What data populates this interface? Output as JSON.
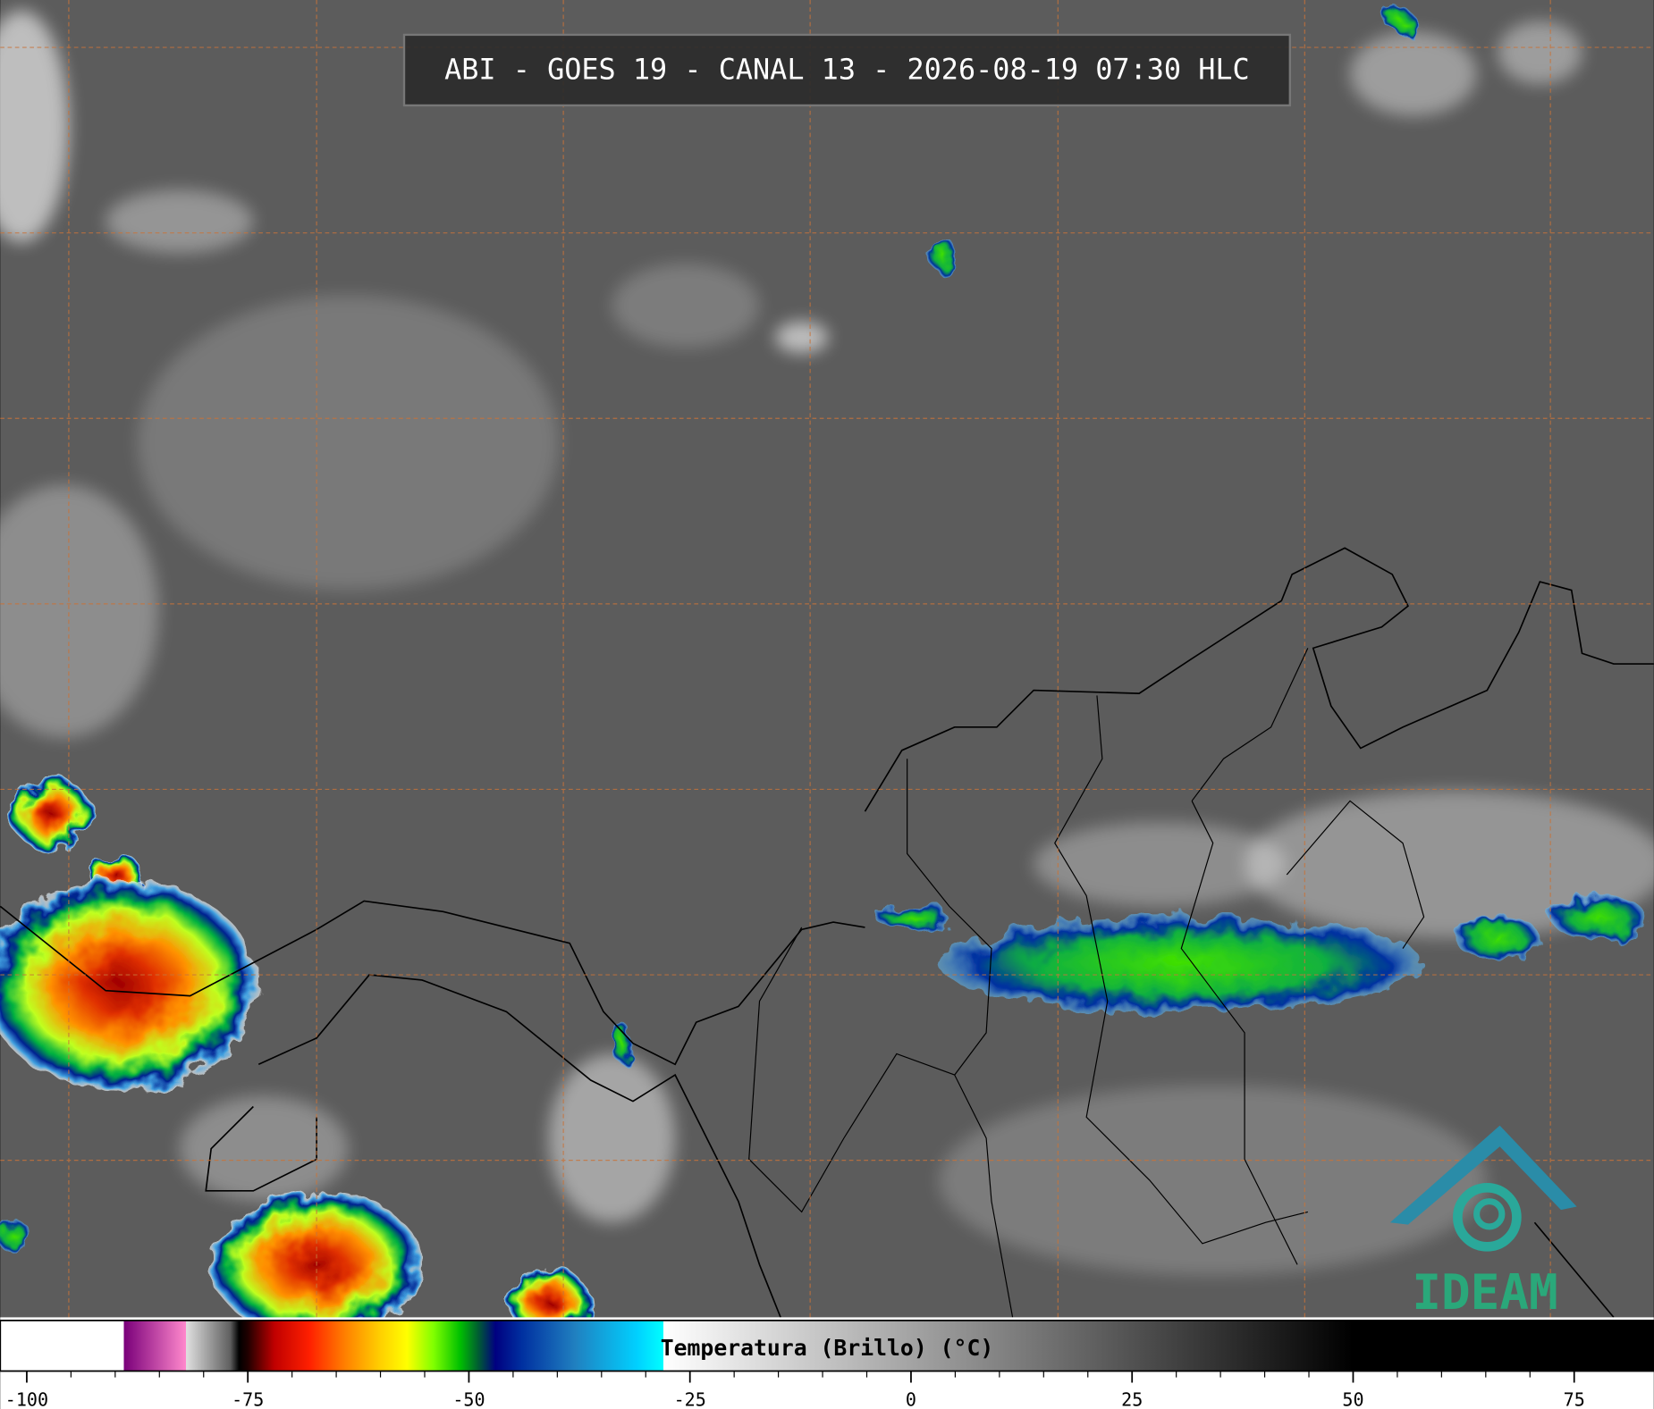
{
  "title": "ABI - GOES 19 - CANAL 13 - 2026-08-19 07:30 HLC",
  "colorbar": {
    "label": "Temperatura (Brillo) (°C)",
    "lim": [
      -103,
      84
    ],
    "ticks": [
      -100,
      -75,
      -50,
      -25,
      0,
      25,
      50,
      75
    ],
    "stops": [
      [
        -103,
        "#ffffff"
      ],
      [
        -89,
        "#ffffff"
      ],
      [
        -89,
        "#7a007a"
      ],
      [
        -82,
        "#ff88cc"
      ],
      [
        -82,
        "#e0e0e0"
      ],
      [
        -77,
        "#606060"
      ],
      [
        -76,
        "#000000"
      ],
      [
        -75,
        "#200000"
      ],
      [
        -72,
        "#c00000"
      ],
      [
        -68,
        "#ff2000"
      ],
      [
        -64,
        "#ff8000"
      ],
      [
        -60,
        "#ffd000"
      ],
      [
        -57,
        "#ffff00"
      ],
      [
        -54,
        "#80ff00"
      ],
      [
        -51,
        "#00c000"
      ],
      [
        -49,
        "#006030"
      ],
      [
        -47,
        "#000080"
      ],
      [
        -44,
        "#0030a0"
      ],
      [
        -38,
        "#2080c0"
      ],
      [
        -31,
        "#00d0ff"
      ],
      [
        -28,
        "#00ffff"
      ],
      [
        -28,
        "#ffffff"
      ],
      [
        50,
        "#000000"
      ],
      [
        84,
        "#000000"
      ]
    ]
  },
  "logo": "IDEAM"
}
